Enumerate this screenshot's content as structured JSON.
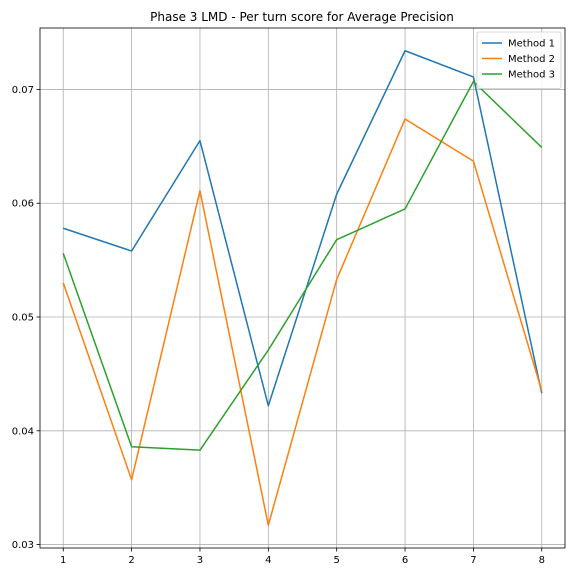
{
  "chart_data": {
    "type": "line",
    "title": "Phase 3 LMD - Per turn score for Average Precision",
    "xlabel": "",
    "ylabel": "",
    "x": [
      1,
      2,
      3,
      4,
      5,
      6,
      7,
      8
    ],
    "xticks": [
      "1",
      "2",
      "3",
      "4",
      "5",
      "6",
      "7",
      "8"
    ],
    "xlim": [
      0.66,
      8.34
    ],
    "yticks": [
      0.03,
      0.04,
      0.05,
      0.06,
      0.07
    ],
    "ytick_labels": [
      "0.03",
      "0.04",
      "0.05",
      "0.06",
      "0.07"
    ],
    "ylim": [
      0.0297,
      0.0754
    ],
    "grid": true,
    "legend_position": "top-right",
    "series": [
      {
        "name": "Method 1",
        "color": "#1f77b4",
        "values": [
          0.0578,
          0.0558,
          0.0655,
          0.0422,
          0.0608,
          0.0734,
          0.0711,
          0.0433
        ]
      },
      {
        "name": "Method 2",
        "color": "#ff7f0e",
        "values": [
          0.053,
          0.0357,
          0.0611,
          0.0317,
          0.0533,
          0.0674,
          0.0637,
          0.0435
        ]
      },
      {
        "name": "Method 3",
        "color": "#2ca02c",
        "values": [
          0.0556,
          0.0386,
          0.0383,
          0.0471,
          0.0568,
          0.0595,
          0.0707,
          0.0649
        ]
      }
    ]
  }
}
